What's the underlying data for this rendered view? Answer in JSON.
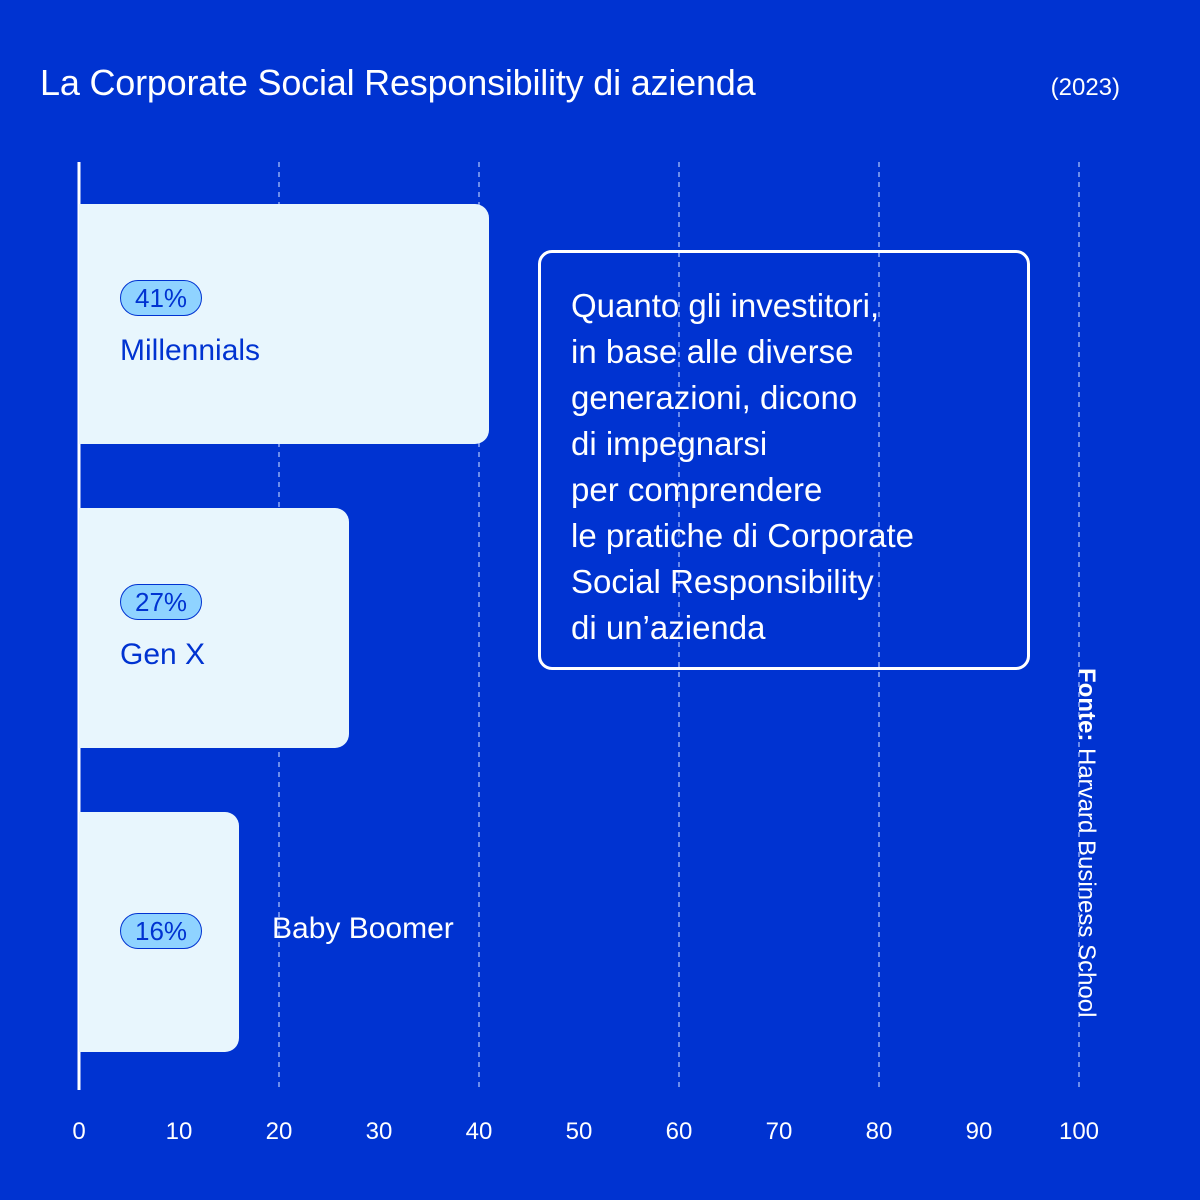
{
  "header": {
    "title": "La Corporate Social Responsibility di azienda",
    "year": "(2023)"
  },
  "callout": {
    "lines": [
      "Quanto gli investitori,",
      "in base alle diverse",
      "generazioni,  dicono",
      "di impegnarsi",
      "per comprendere",
      "le pratiche di Corporate",
      "Social Responsibility",
      "di un’azienda"
    ]
  },
  "source": {
    "label": "Fonte:",
    "name": "Harvard Business School"
  },
  "colors": {
    "background": "#0033d1",
    "bar": "#e8f6fd",
    "pill": "#8fd3ff",
    "text_dark": "#0033d1",
    "text_light": "#ffffff"
  },
  "chart_data": {
    "type": "bar",
    "orientation": "horizontal",
    "categories": [
      "Millennials",
      "Gen X",
      "Baby Boomer"
    ],
    "values": [
      41,
      27,
      16
    ],
    "value_labels": [
      "41%",
      "27%",
      "16%"
    ],
    "xlim": [
      0,
      100
    ],
    "xticks": [
      0,
      10,
      20,
      30,
      40,
      50,
      60,
      70,
      80,
      90,
      100
    ],
    "grid": "vertical dashed at 20, 40, 60, 80, 100",
    "legend": "none"
  }
}
